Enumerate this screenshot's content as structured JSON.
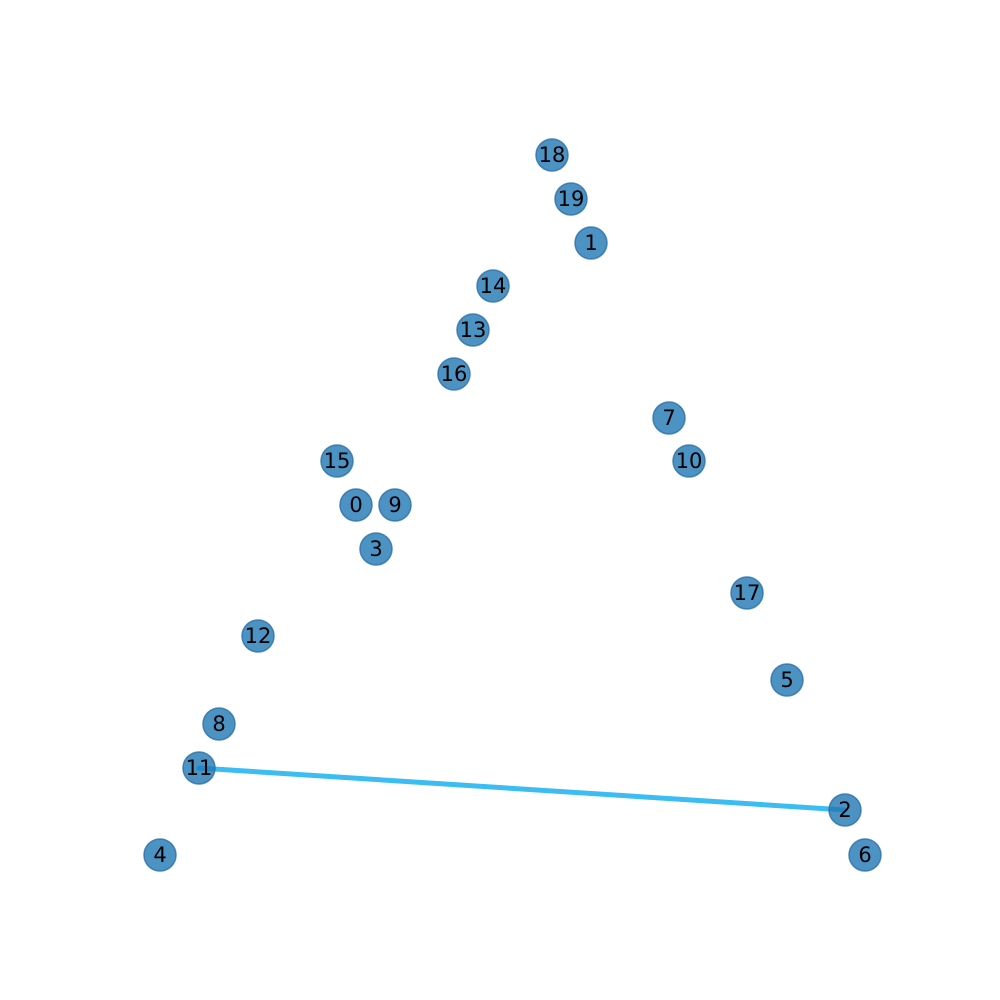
{
  "colors": {
    "background": "#ffffff",
    "node_fill": "#1f77b4",
    "node_fill_opacity": 0.8,
    "node_stroke": "#2a6fa8",
    "edge": "#3bbcf2",
    "label": "#000000"
  },
  "nodes": [
    {
      "id": "0",
      "label": "0"
    },
    {
      "id": "1",
      "label": "1"
    },
    {
      "id": "2",
      "label": "2"
    },
    {
      "id": "3",
      "label": "3"
    },
    {
      "id": "4",
      "label": "4"
    },
    {
      "id": "5",
      "label": "5"
    },
    {
      "id": "6",
      "label": "6"
    },
    {
      "id": "7",
      "label": "7"
    },
    {
      "id": "8",
      "label": "8"
    },
    {
      "id": "9",
      "label": "9"
    },
    {
      "id": "10",
      "label": "10"
    },
    {
      "id": "11",
      "label": "11"
    },
    {
      "id": "12",
      "label": "12"
    },
    {
      "id": "13",
      "label": "13"
    },
    {
      "id": "14",
      "label": "14"
    },
    {
      "id": "15",
      "label": "15"
    },
    {
      "id": "16",
      "label": "16"
    },
    {
      "id": "17",
      "label": "17"
    },
    {
      "id": "18",
      "label": "18"
    },
    {
      "id": "19",
      "label": "19"
    }
  ],
  "edges": [
    {
      "source": "11",
      "target": "2"
    }
  ]
}
